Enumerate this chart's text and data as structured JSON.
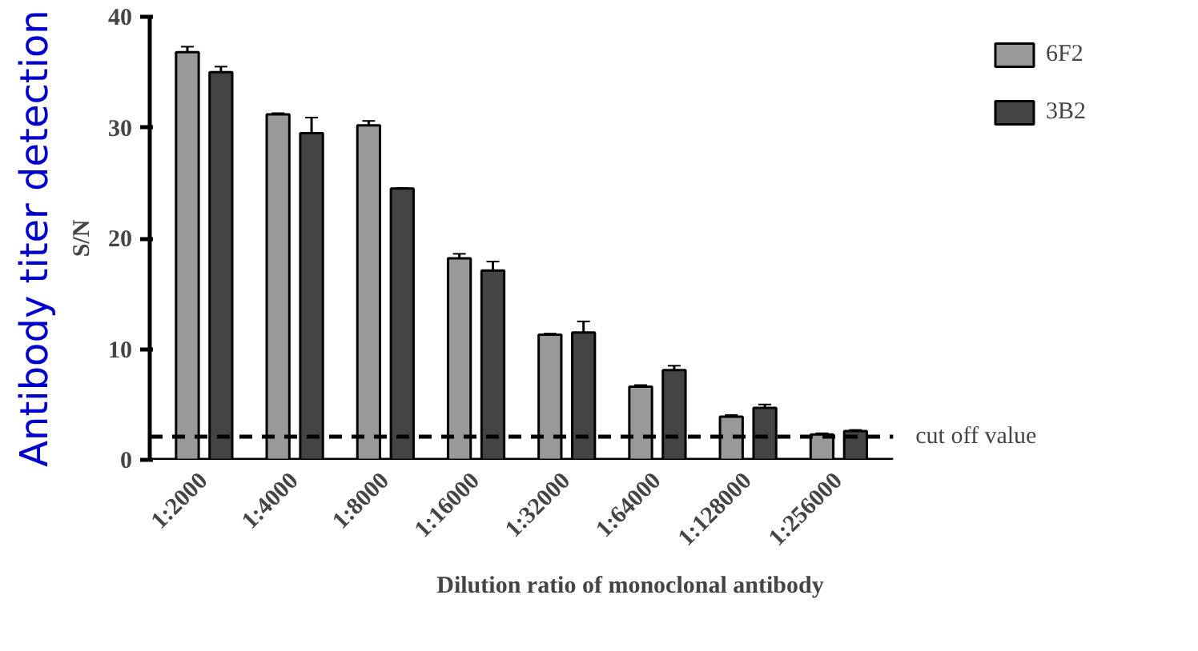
{
  "chart_data": {
    "type": "bar",
    "xlabel": "Dilution ratio of monoclonal antibody",
    "ylabel": "S/N",
    "categories": [
      "1:2000",
      "1:4000",
      "1:8000",
      "1:16000",
      "1:32000",
      "1:64000",
      "1:128000",
      "1:256000"
    ],
    "series": [
      {
        "name": "6F2",
        "color": "#999999",
        "values": [
          36.8,
          31.2,
          30.2,
          18.2,
          11.3,
          6.6,
          3.9,
          2.3
        ],
        "errors": [
          [
            36.8,
            37.3
          ],
          [
            31.2,
            31.3
          ],
          [
            30.2,
            30.6
          ],
          [
            18.2,
            18.6
          ],
          [
            11.3,
            11.4
          ],
          [
            6.6,
            6.75
          ],
          [
            3.9,
            4.05
          ],
          [
            2.3,
            2.4
          ]
        ]
      },
      {
        "name": "3B2",
        "color": "#444444",
        "values": [
          35.0,
          29.5,
          24.5,
          17.1,
          11.5,
          8.1,
          4.7,
          2.6
        ],
        "errors": [
          [
            35.0,
            35.5
          ],
          [
            29.5,
            30.9
          ],
          [
            24.5,
            24.55
          ],
          [
            17.1,
            17.9
          ],
          [
            11.5,
            12.5
          ],
          [
            8.1,
            8.5
          ],
          [
            4.7,
            5.0
          ],
          [
            2.6,
            2.7
          ]
        ]
      }
    ],
    "ylim": [
      0,
      40
    ],
    "yticks": [
      0,
      10,
      20,
      30,
      40
    ],
    "ref_lines": [
      {
        "axis": "y",
        "value": 2.1,
        "label": "cut off value",
        "line_style": "dashed"
      }
    ],
    "annotations": [
      "Antibody titer detection"
    ],
    "legend": "top right",
    "grid": false
  }
}
